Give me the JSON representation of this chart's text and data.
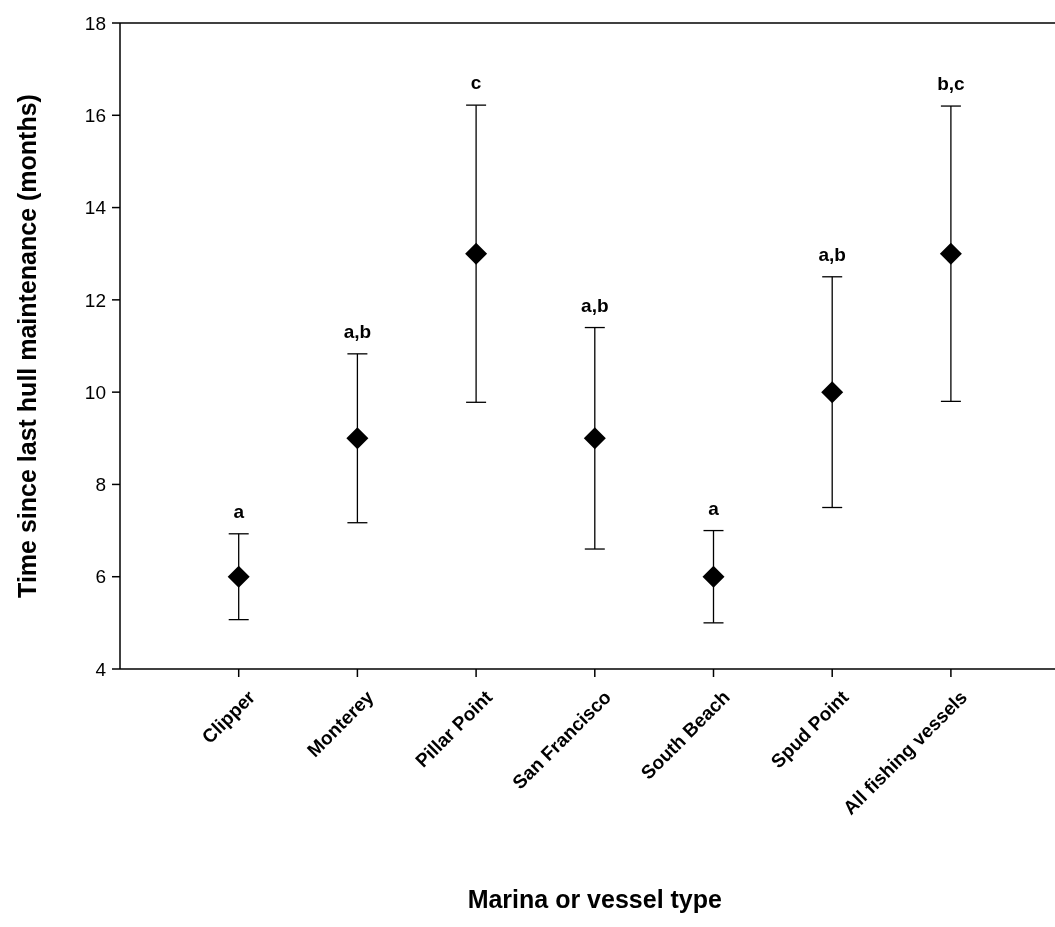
{
  "chart_data": {
    "type": "scatter",
    "xlabel": "Marina or vessel type",
    "ylabel": "Time since last hull maintenance (months)",
    "categories": [
      "Clipper",
      "Monterey",
      "Pillar Point",
      "San Francisco",
      "South Beach",
      "Spud Point",
      "All fishing vessels"
    ],
    "values": [
      6,
      9,
      13,
      9,
      6,
      10,
      13
    ],
    "errors": [
      0.93,
      1.83,
      3.22,
      2.4,
      1,
      2.5,
      3.2
    ],
    "color": "#000000",
    "marker": "diamond",
    "ylim": [
      4,
      18
    ],
    "yticks": [
      4,
      6,
      8,
      10,
      12,
      14,
      16,
      18
    ],
    "annotations": [
      {
        "text": "a",
        "x": "Clipper",
        "y": 6.93
      },
      {
        "text": "a,b",
        "x": "Monterey",
        "y": 10.83
      },
      {
        "text": "c",
        "x": "Pillar Point",
        "y": 16.22
      },
      {
        "text": "a,b",
        "x": "San Francisco",
        "y": 11.4
      },
      {
        "text": "a",
        "x": "South Beach",
        "y": 7
      },
      {
        "text": "a,b",
        "x": "Spud Point",
        "y": 12.5
      },
      {
        "text": "b,c",
        "x": "All fishing vessels",
        "y": 16.2
      }
    ]
  }
}
